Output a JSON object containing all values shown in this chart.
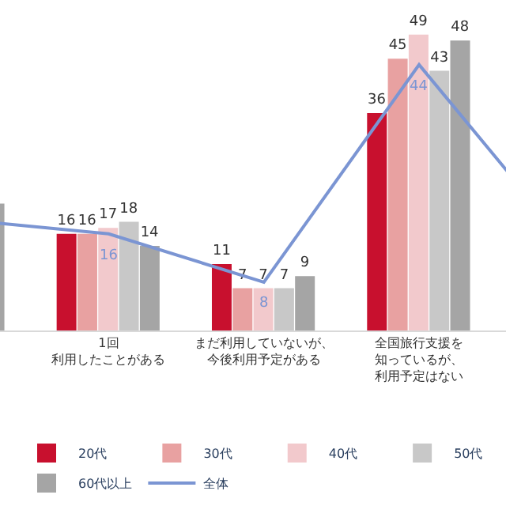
{
  "chart_data": {
    "type": "bar",
    "categories": [
      null,
      "1回利用したことがある",
      "まだ利用していないが、今後利用予定がある",
      "全国旅行支援を知っているが、利用予定はない",
      null
    ],
    "series": [
      {
        "name": "20代",
        "color": "#c8102e",
        "values": [
          null,
          16,
          11,
          36,
          null
        ],
        "value_labels": [
          null,
          "16",
          "11",
          "36",
          null
        ]
      },
      {
        "name": "30代",
        "color": "#e8a1a1",
        "values": [
          null,
          16,
          7,
          45,
          null
        ],
        "value_labels": [
          null,
          "16",
          "7",
          "45",
          null
        ]
      },
      {
        "name": "40代",
        "color": "#f2c9cc",
        "values": [
          null,
          17,
          7,
          49,
          null
        ],
        "value_labels": [
          null,
          "17",
          "7",
          "49",
          null
        ]
      },
      {
        "name": "50代",
        "color": "#c8c8c8",
        "values": [
          null,
          18,
          7,
          43,
          null
        ],
        "value_labels": [
          null,
          "18",
          "7",
          "43",
          null
        ]
      },
      {
        "name": "60代以上",
        "color": "#a5a5a5",
        "values": [
          21,
          14,
          9,
          48,
          null
        ],
        "value_labels": [
          null,
          "14",
          "9",
          "48",
          null
        ]
      },
      {
        "name": "全体",
        "type": "line",
        "color": "#7b95d3",
        "values": [
          18.5,
          16,
          8,
          44,
          13
        ],
        "value_labels": [
          null,
          "16",
          "8",
          "44",
          null
        ]
      }
    ],
    "tick_labels": "x",
    "legend": "bottom",
    "marker": "none"
  }
}
